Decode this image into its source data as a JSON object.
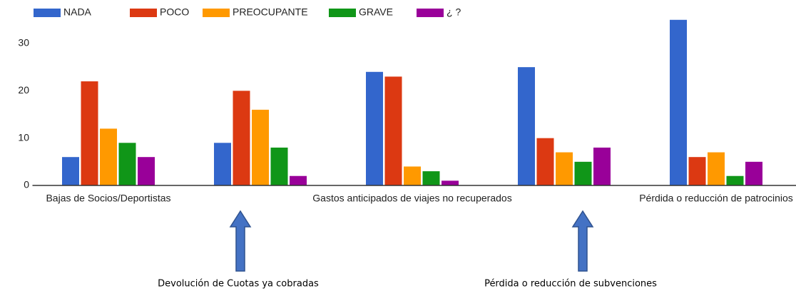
{
  "chart_data": {
    "type": "bar",
    "categories": [
      "Bajas de Socios/Deportistas",
      "Devolución de Cuotas ya cobradas",
      "Gastos anticipados de viajes no recuperados",
      "Pérdida o reducción de subvenciones",
      "Pérdida o reducción de patrocinios"
    ],
    "series": [
      {
        "name": "NADA",
        "color": "#3366cc",
        "values": [
          6,
          9,
          24,
          25,
          35
        ]
      },
      {
        "name": "POCO",
        "color": "#dc3912",
        "values": [
          22,
          20,
          23,
          10,
          6
        ]
      },
      {
        "name": "PREOCUPANTE",
        "color": "#ff9900",
        "values": [
          12,
          16,
          4,
          7,
          7
        ]
      },
      {
        "name": "GRAVE",
        "color": "#109618",
        "values": [
          9,
          8,
          3,
          5,
          2
        ]
      },
      {
        "name": "¿ ?",
        "color": "#990099",
        "values": [
          6,
          2,
          1,
          8,
          5
        ]
      }
    ],
    "ylim": [
      0,
      35
    ],
    "yticks": [
      0,
      10,
      20,
      30
    ],
    "grid": false
  }
}
